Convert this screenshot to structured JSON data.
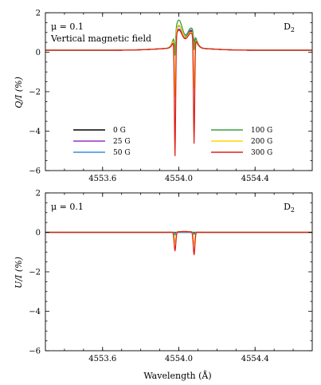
{
  "chart_data": [
    {
      "type": "line",
      "panel": "top",
      "ylabel": "Q/I (%)",
      "xlabel": "",
      "xlim": [
        4553.3,
        4554.7
      ],
      "ylim": [
        -6,
        2
      ],
      "xticks": [
        4553.6,
        4554.0,
        4554.4
      ],
      "yticks": [
        -6,
        -4,
        -2,
        0,
        2
      ],
      "grid": false,
      "annotations": {
        "mu": "μ = 0.1",
        "note": "Vertical magnetic field",
        "line": "D",
        "line_sub": "2"
      },
      "legend_position": "lower-center",
      "series": [
        {
          "name": "0 G",
          "color": "#000000",
          "continuum": 0.1,
          "bump": [
            1.0,
            0.95
          ],
          "dips": [
            -0.05,
            0.05
          ]
        },
        {
          "name": "25 G",
          "color": "#9b30c0",
          "continuum": 0.1,
          "bump": [
            1.05,
            1.0
          ],
          "dips": [
            -0.05,
            0.05
          ]
        },
        {
          "name": "50 G",
          "color": "#3a8ee0",
          "continuum": 0.1,
          "bump": [
            1.2,
            1.1
          ],
          "dips": [
            -0.1,
            -0.05
          ]
        },
        {
          "name": "100 G",
          "color": "#3aa040",
          "continuum": 0.1,
          "bump": [
            1.5,
            1.1
          ],
          "dips": [
            -0.3,
            -0.2
          ]
        },
        {
          "name": "200 G",
          "color": "#ffd700",
          "continuum": 0.1,
          "bump": [
            1.25,
            0.9
          ],
          "dips": [
            -2.4,
            -2.1
          ]
        },
        {
          "name": "300 G",
          "color": "#e0201b",
          "continuum": 0.1,
          "bump": [
            1.0,
            0.85
          ],
          "dips": [
            -5.4,
            -4.9
          ]
        }
      ]
    },
    {
      "type": "line",
      "panel": "bottom",
      "ylabel": "U/I (%)",
      "xlabel": "Wavelength (Å)",
      "xlim": [
        4553.3,
        4554.7
      ],
      "ylim": [
        -6,
        2
      ],
      "xticks": [
        4553.6,
        4554.0,
        4554.4
      ],
      "yticks": [
        -6,
        -4,
        -2,
        0,
        2
      ],
      "grid": false,
      "annotations": {
        "mu": "μ = 0.1",
        "line": "D",
        "line_sub": "2"
      },
      "series": [
        {
          "name": "0 G",
          "color": "#000000",
          "dips": [
            0.0,
            0.0
          ]
        },
        {
          "name": "25 G",
          "color": "#9b30c0",
          "dips": [
            -0.02,
            -0.02
          ]
        },
        {
          "name": "50 G",
          "color": "#3a8ee0",
          "dips": [
            -0.05,
            -0.05
          ]
        },
        {
          "name": "100 G",
          "color": "#3aa040",
          "dips": [
            -0.15,
            -0.12
          ]
        },
        {
          "name": "200 G",
          "color": "#ffd700",
          "dips": [
            -0.5,
            -0.6
          ]
        },
        {
          "name": "300 G",
          "color": "#e0201b",
          "dips": [
            -0.95,
            -1.15
          ]
        }
      ]
    }
  ]
}
